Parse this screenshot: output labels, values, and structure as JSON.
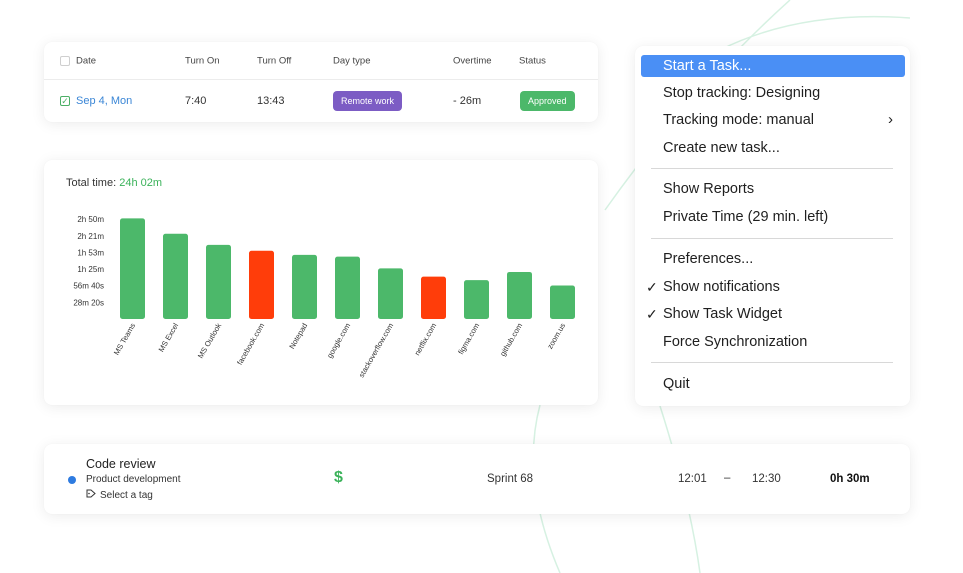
{
  "attendance": {
    "headers": {
      "date": "Date",
      "turn_on": "Turn On",
      "turn_off": "Turn Off",
      "day_type": "Day type",
      "overtime": "Overtime",
      "status": "Status"
    },
    "row": {
      "checked": true,
      "date": "Sep 4, Mon",
      "turn_on": "7:40",
      "turn_off": "13:43",
      "day_type": "Remote work",
      "overtime": "- 26m",
      "status": "Approved"
    },
    "colors": {
      "day_type_pill": "#7c5cc4",
      "status_pill": "#4cb86a",
      "date_link": "#3a86d6"
    }
  },
  "total_time": {
    "label": "Total time:",
    "value": "24h 02m"
  },
  "chart_data": {
    "type": "bar",
    "categories": [
      "MS Teams",
      "MS Excel",
      "MS Outlook",
      "facebook.com",
      "Notepad",
      "google.com",
      "stackoverflow.com",
      "netflix.com",
      "figma.com",
      "github.com",
      "zoom.us"
    ],
    "values": [
      171,
      145,
      126,
      116,
      109,
      106,
      86,
      72,
      66,
      80,
      57
    ],
    "unit": "minutes",
    "y_ticks": [
      {
        "label": "2h 50m",
        "value": 170
      },
      {
        "label": "2h 21m",
        "value": 141
      },
      {
        "label": "1h 53m",
        "value": 113
      },
      {
        "label": "1h 25m",
        "value": 85
      },
      {
        "label": "56m 40s",
        "value": 56.67
      },
      {
        "label": "28m 20s",
        "value": 28.33
      }
    ],
    "ylim": [
      0,
      180
    ],
    "grid": false,
    "bar_colors": [
      "#4cb86a",
      "#4cb86a",
      "#4cb86a",
      "#ff3d0a",
      "#4cb86a",
      "#4cb86a",
      "#4cb86a",
      "#ff3d0a",
      "#4cb86a",
      "#4cb86a",
      "#4cb86a"
    ]
  },
  "menu": {
    "items": [
      {
        "label": "Start a Task...",
        "active": true,
        "checked": false,
        "submenu": false
      },
      {
        "label": "Stop tracking: Designing",
        "active": false,
        "checked": false,
        "submenu": false
      },
      {
        "label": "Tracking mode: manual",
        "active": false,
        "checked": false,
        "submenu": true
      },
      {
        "label": "Create new task...",
        "active": false,
        "checked": false,
        "submenu": false
      },
      {
        "label": "Show Reports",
        "active": false,
        "checked": false,
        "submenu": false
      },
      {
        "label": "Private Time (29 min. left)",
        "active": false,
        "checked": false,
        "submenu": false
      },
      {
        "label": "Preferences...",
        "active": false,
        "checked": false,
        "submenu": false
      },
      {
        "label": "Show notifications",
        "active": false,
        "checked": true,
        "submenu": false
      },
      {
        "label": "Show Task Widget",
        "active": false,
        "checked": true,
        "submenu": false
      },
      {
        "label": "Force Synchronization",
        "active": false,
        "checked": false,
        "submenu": false
      },
      {
        "label": "Quit",
        "active": false,
        "checked": false,
        "submenu": false
      }
    ],
    "check_glyph": "✓",
    "chevron_glyph": "›",
    "colors": {
      "active_bg": "#4a8ff5"
    }
  },
  "task": {
    "title": "Code review",
    "project": "Product development",
    "tag_placeholder": "Select a tag",
    "billable_symbol": "$",
    "sprint": "Sprint 68",
    "start": "12:01",
    "dash": "–",
    "end": "12:30",
    "duration": "0h 30m",
    "colors": {
      "dot": "#2e7be0",
      "billable": "#3bb25a"
    }
  }
}
